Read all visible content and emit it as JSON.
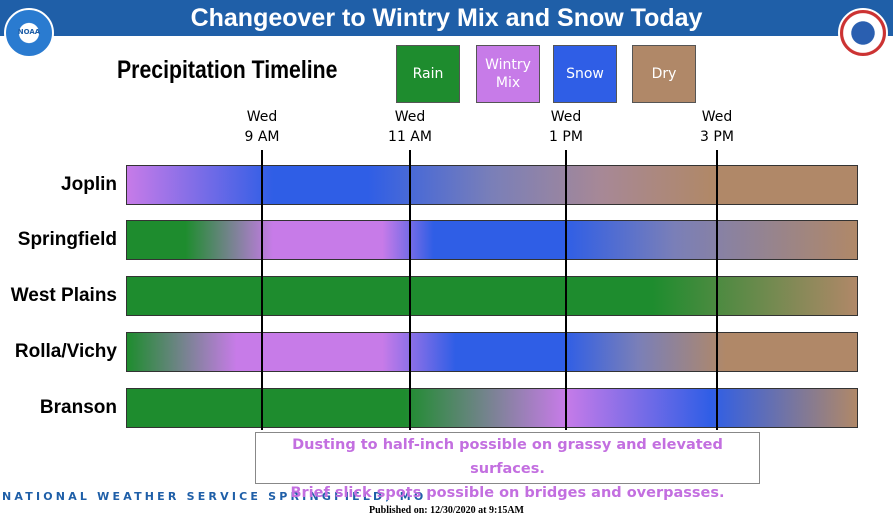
{
  "header": {
    "title": "Changeover to Wintry Mix and Snow Today",
    "subtitle": "Precipitation Timeline",
    "logo_left": "NOAA"
  },
  "legend": [
    "Rain",
    "Wintry Mix",
    "Snow",
    "Dry"
  ],
  "times": [
    {
      "day": "Wed",
      "time": "9 AM"
    },
    {
      "day": "Wed",
      "time": "11 AM"
    },
    {
      "day": "Wed",
      "time": "1 PM"
    },
    {
      "day": "Wed",
      "time": "3 PM"
    }
  ],
  "rows": [
    "Joplin",
    "Springfield",
    "West Plains",
    "Rolla/Vichy",
    "Branson"
  ],
  "note": [
    "Dusting to half-inch possible on grassy and elevated surfaces.",
    "Brief slick spots possible on bridges and overpasses."
  ],
  "footer": {
    "office": "NATIONAL WEATHER SERVICE SPRINGFIELD, MO",
    "published": "Published on: 12/30/2020 at 9:15AM"
  }
}
